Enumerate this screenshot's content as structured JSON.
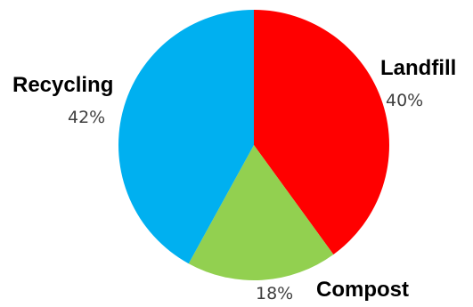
{
  "chart_data": {
    "type": "pie",
    "title": "",
    "legend": "none",
    "categories": [
      "Landfill",
      "Compost",
      "Recycling"
    ],
    "values": [
      40,
      18,
      42
    ],
    "value_labels": [
      "40%",
      "18%",
      "42%"
    ],
    "colors": [
      "#ff0000",
      "#92d050",
      "#00b0f0"
    ],
    "start_angle_deg": 0,
    "direction": "clockwise"
  }
}
